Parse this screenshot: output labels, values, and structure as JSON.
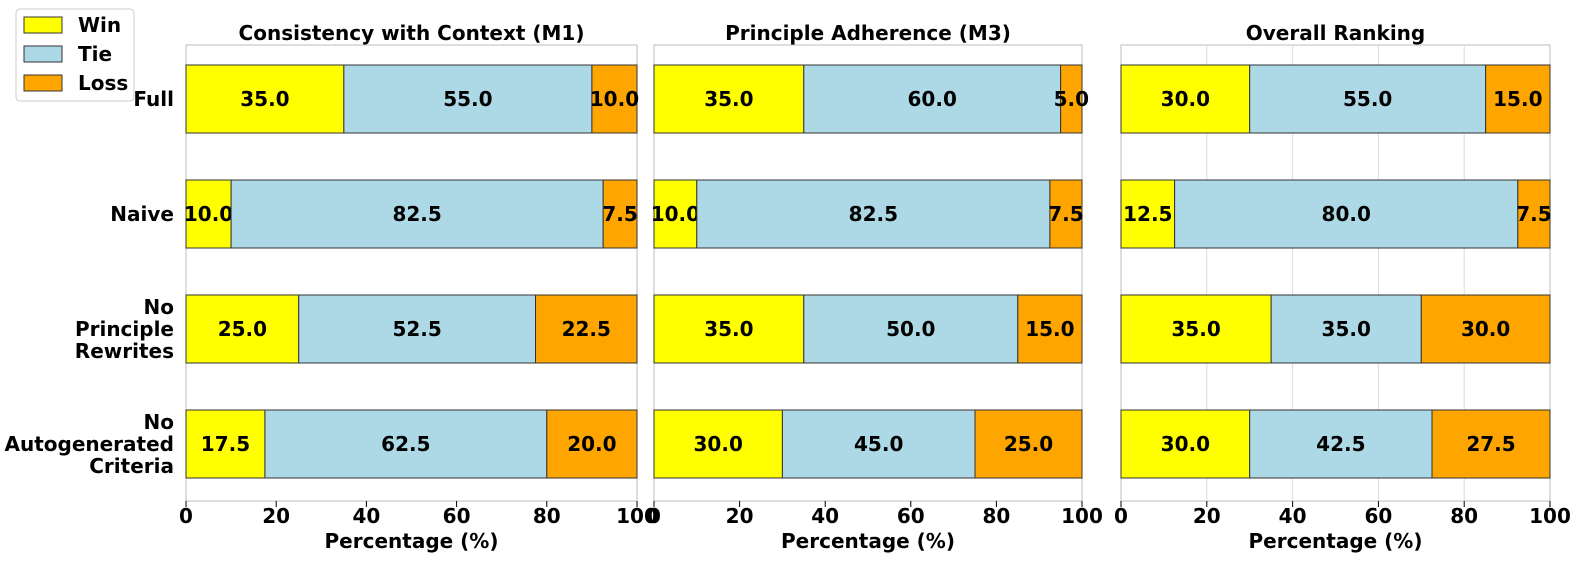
{
  "chart_data": {
    "type": "bar",
    "orientation": "horizontal",
    "stacked": true,
    "categories": [
      "Full",
      "Naive",
      "No Principle Rewrites",
      "No Autogenerated Criteria"
    ],
    "category_lines": [
      [
        "Full"
      ],
      [
        "Naive"
      ],
      [
        "No",
        "Principle",
        "Rewrites"
      ],
      [
        "No",
        "Autogenerated",
        "Criteria"
      ]
    ],
    "legend": {
      "position": "top-left",
      "entries": [
        {
          "name": "Win",
          "color": "#FFFF00"
        },
        {
          "name": "Tie",
          "color": "#ADD8E6"
        },
        {
          "name": "Loss",
          "color": "#FFA500"
        }
      ]
    },
    "xlabel": "Percentage (%)",
    "xlim": [
      0,
      100
    ],
    "xticks": [
      "0",
      "20",
      "40",
      "60",
      "80",
      "100"
    ],
    "panels": [
      {
        "title": "Consistency with Context (M1)",
        "grid": false,
        "series": [
          {
            "name": "Win",
            "values": [
              35.0,
              10.0,
              25.0,
              17.5
            ],
            "labels": [
              "35.0",
              "10.0",
              "25.0",
              "17.5"
            ]
          },
          {
            "name": "Tie",
            "values": [
              55.0,
              82.5,
              52.5,
              62.5
            ],
            "labels": [
              "55.0",
              "82.5",
              "52.5",
              "62.5"
            ]
          },
          {
            "name": "Loss",
            "values": [
              10.0,
              7.5,
              22.5,
              20.0
            ],
            "labels": [
              "10.0",
              "7.5",
              "22.5",
              "20.0"
            ]
          }
        ]
      },
      {
        "title": "Principle Adherence (M3)",
        "grid": false,
        "series": [
          {
            "name": "Win",
            "values": [
              35.0,
              10.0,
              35.0,
              30.0
            ],
            "labels": [
              "35.0",
              "10.0",
              "35.0",
              "30.0"
            ]
          },
          {
            "name": "Tie",
            "values": [
              60.0,
              82.5,
              50.0,
              45.0
            ],
            "labels": [
              "60.0",
              "82.5",
              "50.0",
              "45.0"
            ]
          },
          {
            "name": "Loss",
            "values": [
              5.0,
              7.5,
              15.0,
              25.0
            ],
            "labels": [
              "5.0",
              "7.5",
              "15.0",
              "25.0"
            ]
          }
        ]
      },
      {
        "title": "Overall Ranking",
        "grid": true,
        "series": [
          {
            "name": "Win",
            "values": [
              30.0,
              12.5,
              35.0,
              30.0
            ],
            "labels": [
              "30.0",
              "12.5",
              "35.0",
              "30.0"
            ]
          },
          {
            "name": "Tie",
            "values": [
              55.0,
              80.0,
              35.0,
              42.5
            ],
            "labels": [
              "55.0",
              "80.0",
              "35.0",
              "42.5"
            ]
          },
          {
            "name": "Loss",
            "values": [
              15.0,
              7.5,
              30.0,
              27.5
            ],
            "labels": [
              "15.0",
              "7.5",
              "30.0",
              "27.5"
            ]
          }
        ]
      }
    ]
  }
}
